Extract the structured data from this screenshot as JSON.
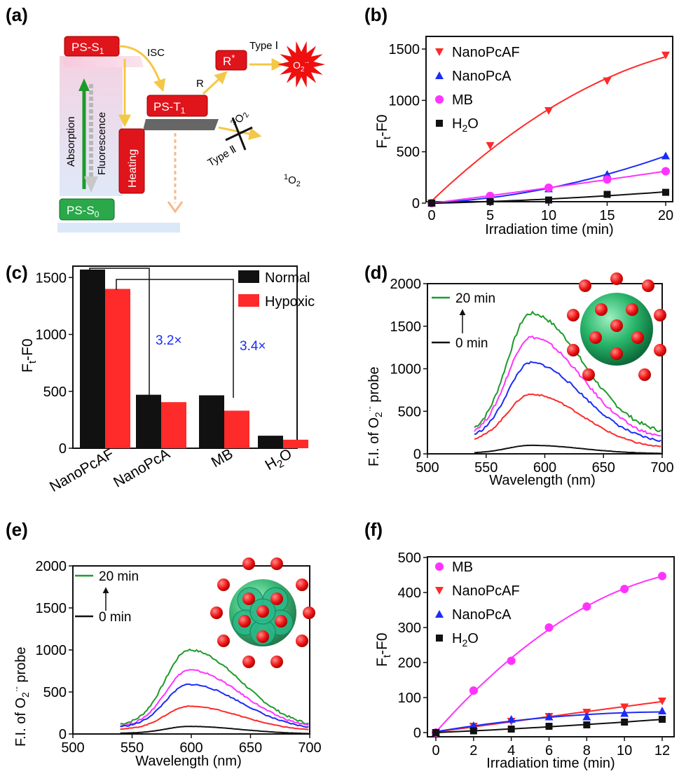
{
  "colors": {
    "red": "#ff2a2a",
    "blue": "#1c2cf5",
    "magenta": "#ff33ff",
    "green": "#1f9a2a",
    "black": "#111111",
    "arrow_yellow": "#f3c847"
  },
  "diagram": {
    "label": "(a)",
    "ps_s1": "PS-S",
    "ps_s1_sub": "1",
    "ps_t1": "PS-T",
    "ps_t1_sub": "1",
    "ps_s0": "PS-S",
    "ps_s0_sub": "0",
    "r_star": "R",
    "r_star_sup": "*",
    "isc": "ISC",
    "r": "R",
    "type1": "Type Ⅰ",
    "type2": "Type Ⅱ",
    "o2_radical": "O",
    "o2_radical_sub": "2",
    "o2_radical_sup": "·-",
    "triplet_o2_pre": "3",
    "triplet_o2": "O",
    "triplet_o2_sub": "2",
    "singlet_o2_pre": "1",
    "singlet_o2": "O",
    "singlet_o2_sub": "2",
    "absorption": "Absorption",
    "fluorescence": "Fluorescence",
    "heating": "Heating"
  },
  "chart_data": [
    {
      "panel": "(b)",
      "type": "line",
      "x_label": "Irradiation time (min)",
      "y_label": "F",
      "y_label_sub": "t",
      "y_label_tail": "-F0",
      "xlim": [
        0,
        20
      ],
      "ylim": [
        0,
        1500
      ],
      "x_ticks": [
        0,
        5,
        10,
        15,
        20
      ],
      "y_ticks": [
        0,
        500,
        1000,
        1500
      ],
      "legend_position": "top-left",
      "series": [
        {
          "name": "NanoPcAF",
          "marker": "triangle-down",
          "color": "#ff2a2a",
          "x": [
            0,
            5,
            10,
            15,
            20
          ],
          "y": [
            0,
            560,
            900,
            1190,
            1440
          ]
        },
        {
          "name": "NanoPcA",
          "marker": "triangle-up",
          "color": "#1c2cf5",
          "x": [
            0,
            5,
            10,
            15,
            20
          ],
          "y": [
            0,
            60,
            140,
            280,
            460
          ]
        },
        {
          "name": "MB",
          "marker": "circle",
          "color": "#ff33ff",
          "x": [
            0,
            5,
            10,
            15,
            20
          ],
          "y": [
            0,
            70,
            150,
            230,
            310
          ]
        },
        {
          "name": "H2O",
          "marker": "square",
          "color": "#111111",
          "x": [
            0,
            5,
            10,
            15,
            20
          ],
          "y": [
            0,
            15,
            30,
            85,
            105
          ]
        }
      ]
    },
    {
      "panel": "(c)",
      "type": "bar",
      "y_label": "F",
      "y_label_sub": "t",
      "y_label_tail": "-F0",
      "ylim": [
        0,
        1600
      ],
      "y_ticks": [
        0,
        500,
        1000,
        1500
      ],
      "categories": [
        "NanoPcAF",
        "NanoPcA",
        "MB",
        "H2O"
      ],
      "legend_position": "top-right",
      "series": [
        {
          "name": "Normal",
          "color": "#111111",
          "values": [
            1570,
            470,
            465,
            110
          ]
        },
        {
          "name": "Hypoxic",
          "color": "#ff2a2a",
          "values": [
            1400,
            405,
            330,
            75
          ]
        }
      ],
      "annotations": [
        "3.2×",
        "3.4×"
      ]
    },
    {
      "panel": "(d)",
      "type": "line",
      "x_label": "Wavelength (nm)",
      "y_label": "F.I. of O",
      "y_label_sub": "2",
      "y_label_sup": "·-",
      "y_label_tail": " probe",
      "xlim": [
        500,
        700
      ],
      "ylim": [
        0,
        2000
      ],
      "x_ticks": [
        500,
        550,
        600,
        650,
        700
      ],
      "y_ticks": [
        0,
        500,
        1000,
        1500,
        2000
      ],
      "legend_top": "20 min",
      "legend_bottom": "0 min",
      "x_start": 540,
      "peak_x": 588,
      "series": [
        {
          "color": "#1f9a2a",
          "peak": 1650,
          "start": 310,
          "end": 270
        },
        {
          "color": "#ff33ff",
          "peak": 1370,
          "start": 280,
          "end": 200
        },
        {
          "color": "#1c2cf5",
          "peak": 1070,
          "start": 230,
          "end": 150
        },
        {
          "color": "#ff2a2a",
          "peak": 700,
          "start": 180,
          "end": 80
        },
        {
          "color": "#111111",
          "peak": 100,
          "start": 15,
          "end": 5
        }
      ]
    },
    {
      "panel": "(e)",
      "type": "line",
      "x_label": "Wavelength (nm)",
      "y_label": "F.I. of O",
      "y_label_sub": "2",
      "y_label_sup": "·-",
      "y_label_tail": " probe",
      "xlim": [
        500,
        700
      ],
      "ylim": [
        0,
        2000
      ],
      "x_ticks": [
        500,
        550,
        600,
        650,
        700
      ],
      "y_ticks": [
        0,
        500,
        1000,
        1500,
        2000
      ],
      "legend_top": "20 min",
      "legend_bottom": "0 min",
      "x_start": 540,
      "peak_x": 598,
      "series": [
        {
          "color": "#1f9a2a",
          "peak": 1000,
          "start": 120,
          "end": 120
        },
        {
          "color": "#ff33ff",
          "peak": 760,
          "start": 100,
          "end": 100
        },
        {
          "color": "#1c2cf5",
          "peak": 590,
          "start": 90,
          "end": 80
        },
        {
          "color": "#ff2a2a",
          "peak": 330,
          "start": 60,
          "end": 50
        },
        {
          "color": "#111111",
          "peak": 90,
          "start": 10,
          "end": 5
        }
      ]
    },
    {
      "panel": "(f)",
      "type": "line",
      "x_label": "Irradiation time (min)",
      "y_label": "F",
      "y_label_sub": "t",
      "y_label_tail": "-F0",
      "xlim": [
        0,
        12
      ],
      "ylim": [
        0,
        500
      ],
      "x_ticks": [
        0,
        2,
        4,
        6,
        8,
        10,
        12
      ],
      "y_ticks": [
        0,
        100,
        200,
        300,
        400,
        500
      ],
      "legend_position": "top-left",
      "series": [
        {
          "name": "MB",
          "marker": "circle",
          "color": "#ff33ff",
          "x": [
            0,
            2,
            4,
            6,
            8,
            10,
            12
          ],
          "y": [
            0,
            120,
            205,
            300,
            360,
            410,
            447
          ]
        },
        {
          "name": "NanoPcAF",
          "marker": "triangle-down",
          "color": "#ff2a2a",
          "x": [
            0,
            2,
            4,
            6,
            8,
            10,
            12
          ],
          "y": [
            0,
            18,
            32,
            46,
            58,
            73,
            90
          ]
        },
        {
          "name": "NanoPcA",
          "marker": "triangle-up",
          "color": "#1c2cf5",
          "x": [
            0,
            2,
            4,
            6,
            8,
            10,
            12
          ],
          "y": [
            0,
            20,
            38,
            45,
            45,
            55,
            62
          ]
        },
        {
          "name": "H2O",
          "marker": "square",
          "color": "#111111",
          "x": [
            0,
            2,
            4,
            6,
            8,
            10,
            12
          ],
          "y": [
            0,
            5,
            10,
            18,
            22,
            30,
            38
          ]
        }
      ]
    }
  ]
}
